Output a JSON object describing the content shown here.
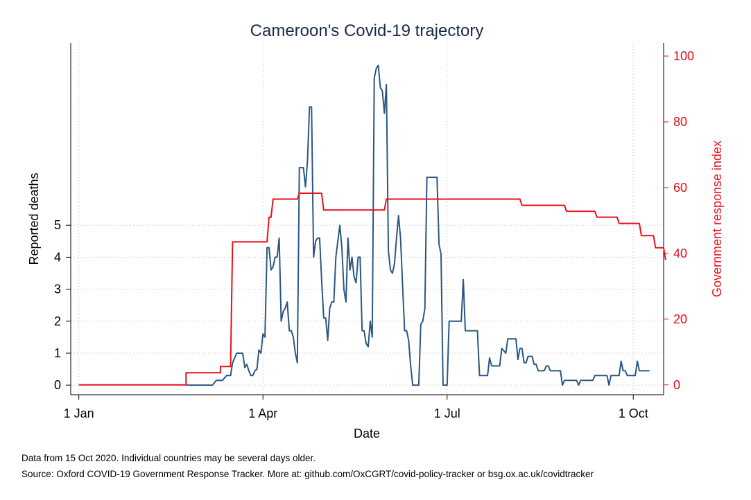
{
  "chart_data": {
    "type": "line",
    "title": "Cameroon's Covid-19 trajectory",
    "xlabel": "Date",
    "ylabel_left": "Reported deaths",
    "ylabel_right": "Government response index",
    "grid": true,
    "colors": {
      "deaths": "#2a5783",
      "response": "#e8101b",
      "title": "#1a2a4a"
    },
    "x_ticks": [
      "1 Jan",
      "1 Apr",
      "1 Jul",
      "1 Oct"
    ],
    "x_tick_days": [
      0,
      91,
      182,
      274
    ],
    "x_range_days": [
      -4,
      289
    ],
    "y_left_ticks": [
      0,
      1,
      2,
      3,
      4,
      5
    ],
    "y_left_range": [
      -0.3,
      10.7
    ],
    "y_right_ticks": [
      0,
      20,
      40,
      60,
      80,
      100
    ],
    "y_right_range": [
      -3,
      104
    ],
    "series": [
      {
        "axis": "left",
        "points": [
          [
            53,
            0
          ],
          [
            66,
            0
          ],
          [
            68,
            0.15
          ],
          [
            71,
            0.15
          ],
          [
            73,
            0.3
          ],
          [
            75,
            0.3
          ],
          [
            76,
            0.7
          ],
          [
            78,
            1.0
          ],
          [
            81,
            1.0
          ],
          [
            82,
            0.55
          ],
          [
            83,
            0.65
          ],
          [
            84,
            0.45
          ],
          [
            85,
            0.3
          ],
          [
            86,
            0.3
          ],
          [
            87,
            0.45
          ],
          [
            88,
            0.5
          ],
          [
            89,
            1.1
          ],
          [
            90,
            1.0
          ],
          [
            91,
            1.6
          ],
          [
            92,
            1.5
          ],
          [
            93,
            4.3
          ],
          [
            94,
            4.3
          ],
          [
            95,
            3.6
          ],
          [
            96,
            3.7
          ],
          [
            97,
            4.0
          ],
          [
            98,
            4.0
          ],
          [
            99,
            4.6
          ],
          [
            100,
            2.0
          ],
          [
            101,
            2.3
          ],
          [
            102,
            2.4
          ],
          [
            103,
            2.6
          ],
          [
            104,
            1.7
          ],
          [
            105,
            1.7
          ],
          [
            106,
            1.5
          ],
          [
            107,
            1.0
          ],
          [
            108,
            0.7
          ],
          [
            109,
            6.8
          ],
          [
            110,
            6.8
          ],
          [
            111,
            6.8
          ],
          [
            112,
            6.2
          ],
          [
            113,
            7.0
          ],
          [
            114,
            8.7
          ],
          [
            115,
            8.7
          ],
          [
            116,
            4.0
          ],
          [
            117,
            4.5
          ],
          [
            118,
            4.6
          ],
          [
            119,
            4.6
          ],
          [
            120,
            3.3
          ],
          [
            121,
            2.1
          ],
          [
            122,
            2.1
          ],
          [
            123,
            1.4
          ],
          [
            124,
            2.4
          ],
          [
            125,
            2.6
          ],
          [
            126,
            2.6
          ],
          [
            127,
            4.0
          ],
          [
            128,
            4.5
          ],
          [
            129,
            5.0
          ],
          [
            130,
            4.3
          ],
          [
            131,
            3.0
          ],
          [
            132,
            2.6
          ],
          [
            133,
            4.6
          ],
          [
            134,
            3.6
          ],
          [
            135,
            4.0
          ],
          [
            136,
            3.4
          ],
          [
            137,
            3.2
          ],
          [
            138,
            4.0
          ],
          [
            139,
            4.0
          ],
          [
            140,
            1.7
          ],
          [
            141,
            1.7
          ],
          [
            142,
            1.3
          ],
          [
            143,
            1.2
          ],
          [
            144,
            2.0
          ],
          [
            145,
            1.5
          ],
          [
            146,
            9.6
          ],
          [
            147,
            9.9
          ],
          [
            148,
            10.0
          ],
          [
            149,
            9.3
          ],
          [
            150,
            9.2
          ],
          [
            151,
            8.5
          ],
          [
            152,
            9.4
          ],
          [
            153,
            4.2
          ],
          [
            154,
            3.6
          ],
          [
            155,
            3.5
          ],
          [
            156,
            3.8
          ],
          [
            157,
            4.6
          ],
          [
            158,
            5.3
          ],
          [
            159,
            4.6
          ],
          [
            160,
            3.1
          ],
          [
            161,
            1.7
          ],
          [
            162,
            1.7
          ],
          [
            163,
            1.4
          ],
          [
            164,
            0.6
          ],
          [
            165,
            0
          ],
          [
            168,
            0
          ],
          [
            169,
            1.9
          ],
          [
            170,
            2.0
          ],
          [
            171,
            2.4
          ],
          [
            172,
            6.5
          ],
          [
            177,
            6.5
          ],
          [
            178,
            4.4
          ],
          [
            179,
            4.1
          ],
          [
            180,
            0
          ],
          [
            182,
            0
          ],
          [
            183,
            2.0
          ],
          [
            189,
            2.0
          ],
          [
            190,
            3.3
          ],
          [
            191,
            1.7
          ],
          [
            197,
            1.7
          ],
          [
            198,
            0.3
          ],
          [
            202,
            0.3
          ],
          [
            203,
            0.85
          ],
          [
            204,
            0.6
          ],
          [
            208,
            0.6
          ],
          [
            209,
            1.15
          ],
          [
            211,
            1.0
          ],
          [
            212,
            1.45
          ],
          [
            216,
            1.45
          ],
          [
            217,
            0.8
          ],
          [
            218,
            1.15
          ],
          [
            219,
            1.15
          ],
          [
            220,
            0.7
          ],
          [
            221,
            0.7
          ],
          [
            222,
            0.9
          ],
          [
            224,
            0.9
          ],
          [
            225,
            0.65
          ],
          [
            226,
            0.65
          ],
          [
            227,
            0.45
          ],
          [
            230,
            0.45
          ],
          [
            231,
            0.6
          ],
          [
            232,
            0.6
          ],
          [
            233,
            0.45
          ],
          [
            238,
            0.45
          ],
          [
            239,
            0
          ],
          [
            240,
            0.15
          ],
          [
            246,
            0.15
          ],
          [
            247,
            0
          ],
          [
            248,
            0.15
          ],
          [
            254,
            0.15
          ],
          [
            255,
            0.3
          ],
          [
            261,
            0.3
          ],
          [
            262,
            0
          ],
          [
            263,
            0.3
          ],
          [
            267,
            0.3
          ],
          [
            268,
            0.75
          ],
          [
            269,
            0.45
          ],
          [
            270,
            0.45
          ],
          [
            271,
            0.3
          ],
          [
            275,
            0.3
          ],
          [
            276,
            0.75
          ],
          [
            277,
            0.45
          ],
          [
            282,
            0.45
          ]
        ]
      },
      {
        "axis": "right",
        "points": [
          [
            0,
            0
          ],
          [
            53,
            0
          ],
          [
            53,
            3.7
          ],
          [
            70,
            3.7
          ],
          [
            70,
            5.6
          ],
          [
            75,
            5.6
          ],
          [
            76,
            43.5
          ],
          [
            93,
            43.5
          ],
          [
            94,
            51
          ],
          [
            95,
            51
          ],
          [
            96,
            56.5
          ],
          [
            108,
            56.5
          ],
          [
            109,
            58.3
          ],
          [
            120,
            58.3
          ],
          [
            121,
            53.2
          ],
          [
            151,
            53.2
          ],
          [
            152,
            56.5
          ],
          [
            218,
            56.5
          ],
          [
            219,
            54.6
          ],
          [
            240,
            54.6
          ],
          [
            241,
            52.8
          ],
          [
            255,
            52.8
          ],
          [
            256,
            51
          ],
          [
            266,
            51
          ],
          [
            267,
            49.1
          ],
          [
            277,
            49.1
          ],
          [
            278,
            45.4
          ],
          [
            284,
            45.4
          ],
          [
            285,
            41.7
          ],
          [
            289,
            41.7
          ],
          [
            290,
            38
          ]
        ]
      }
    ]
  },
  "footer": {
    "note_line1": "Data from 15 Oct 2020. Individual countries may be several days older.",
    "note_line2": "Source: Oxford COVID-19 Government Response Tracker. More at: github.com/OxCGRT/covid-policy-tracker or bsg.ox.ac.uk/covidtracker"
  }
}
